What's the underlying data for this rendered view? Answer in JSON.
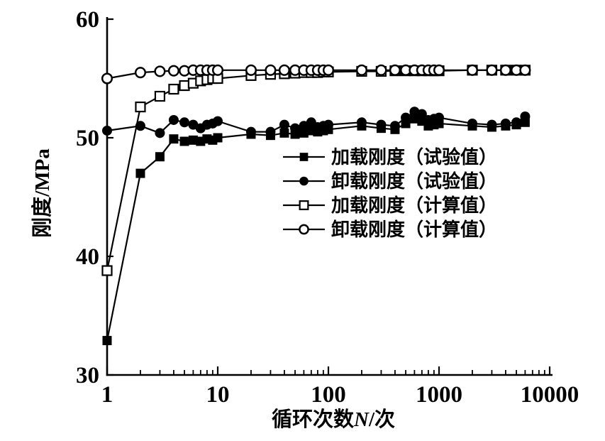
{
  "figure": {
    "background": "#ffffff",
    "ink": "#000000"
  },
  "chart_data": {
    "type": "line",
    "title": "",
    "xlabel": "循环次数N/次",
    "xlabel_parts": {
      "prefix": "循环次数",
      "italic": "N",
      "suffix": "/次"
    },
    "ylabel": "刚度/MPa",
    "x_scale": "log",
    "xlim": [
      1,
      10000
    ],
    "ylim": [
      30,
      60
    ],
    "x_ticks": [
      1,
      10,
      100,
      1000,
      10000
    ],
    "x_tick_labels": [
      "1",
      "10",
      "100",
      "1000",
      "10000"
    ],
    "y_ticks": [
      30,
      40,
      50,
      60
    ],
    "y_tick_labels": [
      "30",
      "40",
      "50",
      "60"
    ],
    "grid": false,
    "legend_position": "inside-right-middle",
    "x": [
      1,
      2,
      3,
      4,
      5,
      6,
      7,
      8,
      9,
      10,
      20,
      30,
      40,
      50,
      60,
      70,
      80,
      90,
      100,
      200,
      300,
      400,
      500,
      600,
      700,
      800,
      900,
      1000,
      2000,
      3000,
      4000,
      5000,
      6000
    ],
    "series": [
      {
        "key": "load-test",
        "name": "加载刚度（试验值）",
        "marker": "filled-square",
        "values": [
          32.9,
          47.0,
          48.4,
          49.9,
          49.7,
          49.8,
          49.7,
          49.9,
          49.8,
          50.0,
          50.3,
          50.2,
          50.4,
          50.3,
          50.4,
          50.6,
          50.5,
          50.6,
          50.7,
          51.0,
          50.8,
          50.7,
          51.2,
          51.6,
          51.4,
          51.0,
          51.1,
          51.2,
          51.0,
          50.9,
          51.0,
          51.1,
          51.3
        ]
      },
      {
        "key": "unload-test",
        "name": "卸载刚度（试验值）",
        "marker": "filled-circle",
        "values": [
          50.6,
          51.0,
          50.4,
          51.5,
          51.3,
          51.1,
          50.8,
          51.1,
          51.2,
          51.4,
          50.5,
          50.5,
          51.1,
          50.8,
          51.0,
          51.3,
          50.9,
          51.0,
          51.1,
          51.3,
          51.1,
          51.0,
          51.7,
          52.2,
          52.0,
          51.5,
          51.6,
          51.7,
          51.2,
          51.1,
          51.2,
          51.3,
          51.8
        ]
      },
      {
        "key": "load-calc",
        "name": "加载刚度（计算值）",
        "marker": "open-square",
        "values": [
          38.8,
          52.6,
          53.5,
          54.1,
          54.4,
          54.6,
          54.8,
          54.9,
          55.0,
          55.0,
          55.25,
          55.35,
          55.4,
          55.45,
          55.5,
          55.5,
          55.5,
          55.55,
          55.55,
          55.6,
          55.6,
          55.65,
          55.65,
          55.65,
          55.65,
          55.65,
          55.65,
          55.65,
          55.7,
          55.7,
          55.7,
          55.7,
          55.7
        ]
      },
      {
        "key": "unload-calc",
        "name": "卸载刚度（计算值）",
        "marker": "open-circle",
        "values": [
          55.0,
          55.5,
          55.6,
          55.65,
          55.65,
          55.7,
          55.7,
          55.7,
          55.7,
          55.7,
          55.7,
          55.7,
          55.7,
          55.7,
          55.7,
          55.7,
          55.7,
          55.7,
          55.7,
          55.7,
          55.7,
          55.7,
          55.7,
          55.7,
          55.7,
          55.7,
          55.7,
          55.7,
          55.7,
          55.7,
          55.7,
          55.7,
          55.7
        ]
      }
    ]
  }
}
